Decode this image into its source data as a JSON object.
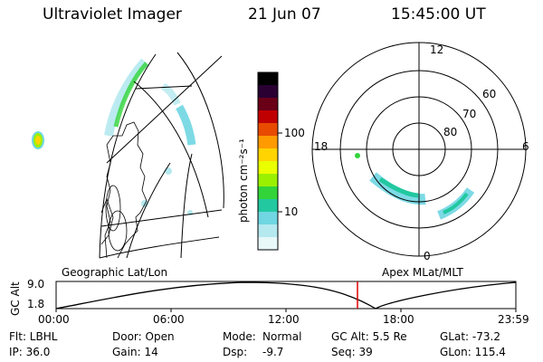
{
  "header": {
    "instrument": "Ultraviolet Imager",
    "date": "21 Jun 07",
    "time": "15:45:00 UT"
  },
  "colorbar": {
    "label_units": "photon cm⁻²s⁻¹",
    "ticks": [
      "100",
      "10"
    ],
    "colors": [
      "#000000",
      "#2a0033",
      "#6a0018",
      "#c00000",
      "#e84b00",
      "#ff9a00",
      "#ffd400",
      "#eaff00",
      "#9bf000",
      "#33d43a",
      "#22c8a0",
      "#6fd6e2",
      "#b4e9ef",
      "#e8f7f8"
    ]
  },
  "polar": {
    "lat_labels": [
      "60",
      "70",
      "80"
    ],
    "mlt_labels": {
      "top": "12",
      "bottom": "0",
      "left": "18",
      "right": "6"
    }
  },
  "panel_labels": {
    "left": "Geographic Lat/Lon",
    "right": "Apex MLat/MLT"
  },
  "alt_plot": {
    "ylabel": "GC Alt",
    "yticks": [
      "9.0",
      "1.8"
    ],
    "xticks": [
      "00:00",
      "06:00",
      "12:00",
      "18:00",
      "23:59"
    ],
    "current_time_marker": "15:45"
  },
  "status": {
    "col1": [
      "Flt: LBHL",
      "IP: 36.0"
    ],
    "col2": [
      "Door: Open",
      "Gain: 14"
    ],
    "col3a": [
      "Mode:",
      "Dsp:"
    ],
    "col3b": [
      "Normal",
      "-9.7"
    ],
    "col4": [
      "GC Alt: 5.5 Re",
      "Seq: 39"
    ],
    "col5": [
      "GLat: -73.2",
      "GLon: 115.4"
    ]
  }
}
